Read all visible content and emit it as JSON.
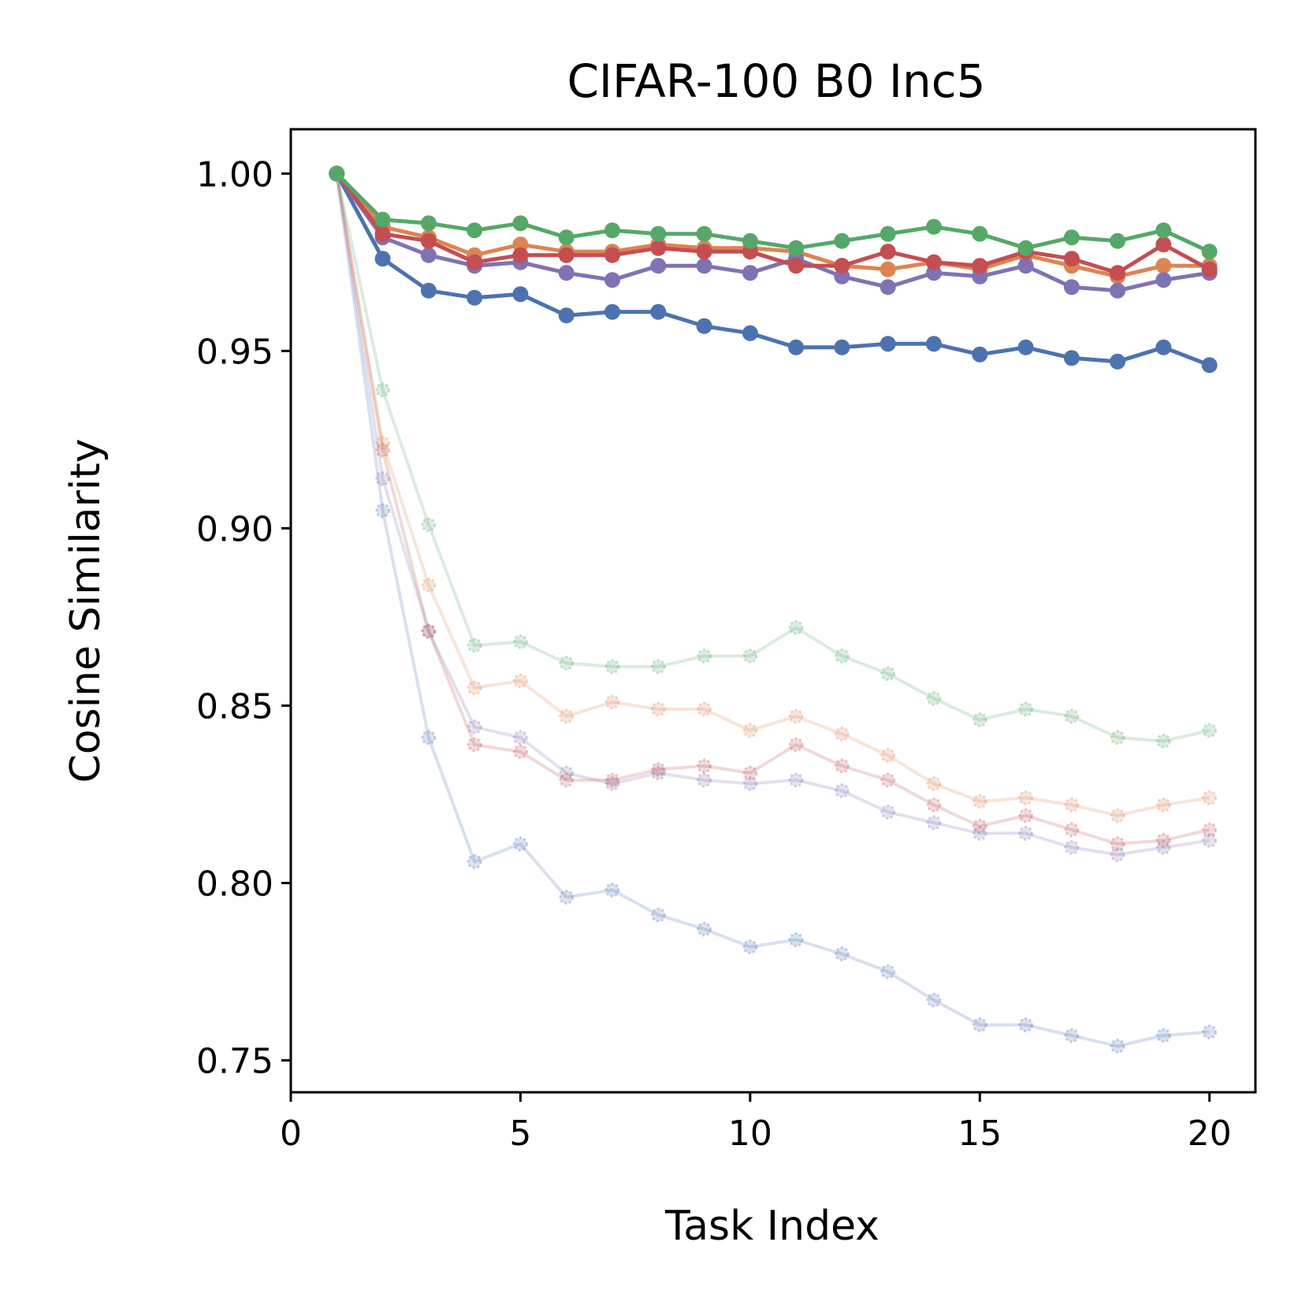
{
  "chart_data": {
    "type": "line",
    "title": "CIFAR-100 B0 Inc5",
    "xlabel": "Task Index",
    "ylabel": "Cosine Similarity",
    "xlim": [
      0,
      21
    ],
    "ylim": [
      0.741,
      1.0125
    ],
    "xticks": [
      0,
      5,
      10,
      15,
      20
    ],
    "xtick_labels": [
      "0",
      "5",
      "10",
      "15",
      "20"
    ],
    "yticks": [
      0.75,
      0.8,
      0.85,
      0.9,
      0.95,
      1.0
    ],
    "ytick_labels": [
      "0.75",
      "0.80",
      "0.85",
      "0.90",
      "0.95",
      "1.00"
    ],
    "grid": false,
    "x": [
      1,
      2,
      3,
      4,
      5,
      6,
      7,
      8,
      9,
      10,
      11,
      12,
      13,
      14,
      15,
      16,
      17,
      18,
      19,
      20
    ],
    "series": [
      {
        "name": "blue-faded",
        "color": "#4c72b0",
        "faded": true,
        "values": [
          1.0,
          0.905,
          0.841,
          0.806,
          0.811,
          0.796,
          0.798,
          0.791,
          0.787,
          0.782,
          0.784,
          0.78,
          0.775,
          0.767,
          0.76,
          0.76,
          0.757,
          0.754,
          0.757,
          0.758
        ]
      },
      {
        "name": "purple-faded",
        "color": "#8172b3",
        "faded": true,
        "values": [
          1.0,
          0.914,
          0.871,
          0.844,
          0.841,
          0.831,
          0.828,
          0.831,
          0.829,
          0.828,
          0.829,
          0.826,
          0.82,
          0.817,
          0.814,
          0.814,
          0.81,
          0.808,
          0.81,
          0.812
        ]
      },
      {
        "name": "red-faded",
        "color": "#c44e52",
        "faded": true,
        "values": [
          1.0,
          0.922,
          0.871,
          0.839,
          0.837,
          0.829,
          0.829,
          0.832,
          0.833,
          0.831,
          0.839,
          0.833,
          0.829,
          0.822,
          0.816,
          0.819,
          0.815,
          0.811,
          0.812,
          0.815
        ]
      },
      {
        "name": "orange-faded",
        "color": "#dd8452",
        "faded": true,
        "values": [
          1.0,
          0.924,
          0.884,
          0.855,
          0.857,
          0.847,
          0.851,
          0.849,
          0.849,
          0.843,
          0.847,
          0.842,
          0.836,
          0.828,
          0.823,
          0.824,
          0.822,
          0.819,
          0.822,
          0.824
        ]
      },
      {
        "name": "green-faded",
        "color": "#55a868",
        "faded": true,
        "values": [
          1.0,
          0.939,
          0.901,
          0.867,
          0.868,
          0.862,
          0.861,
          0.861,
          0.864,
          0.864,
          0.872,
          0.864,
          0.859,
          0.852,
          0.846,
          0.849,
          0.847,
          0.841,
          0.84,
          0.843
        ]
      },
      {
        "name": "blue",
        "color": "#4c72b0",
        "faded": false,
        "values": [
          1.0,
          0.976,
          0.967,
          0.965,
          0.966,
          0.96,
          0.961,
          0.961,
          0.957,
          0.955,
          0.951,
          0.951,
          0.952,
          0.952,
          0.949,
          0.951,
          0.948,
          0.947,
          0.951,
          0.946
        ]
      },
      {
        "name": "orange",
        "color": "#dd8452",
        "faded": false,
        "values": [
          1.0,
          0.985,
          0.982,
          0.977,
          0.98,
          0.978,
          0.978,
          0.98,
          0.979,
          0.979,
          0.978,
          0.974,
          0.973,
          0.975,
          0.973,
          0.977,
          0.974,
          0.971,
          0.974,
          0.974
        ]
      },
      {
        "name": "purple",
        "color": "#8172b3",
        "faded": false,
        "values": [
          1.0,
          0.982,
          0.977,
          0.974,
          0.975,
          0.972,
          0.97,
          0.974,
          0.974,
          0.972,
          0.976,
          0.971,
          0.968,
          0.972,
          0.971,
          0.974,
          0.968,
          0.967,
          0.97,
          0.972
        ]
      },
      {
        "name": "red",
        "color": "#c44e52",
        "faded": false,
        "values": [
          1.0,
          0.983,
          0.981,
          0.975,
          0.977,
          0.977,
          0.977,
          0.979,
          0.978,
          0.978,
          0.974,
          0.974,
          0.978,
          0.975,
          0.974,
          0.978,
          0.976,
          0.972,
          0.98,
          0.973
        ]
      },
      {
        "name": "green",
        "color": "#55a868",
        "faded": false,
        "values": [
          1.0,
          0.987,
          0.986,
          0.984,
          0.986,
          0.982,
          0.984,
          0.983,
          0.983,
          0.981,
          0.979,
          0.981,
          0.983,
          0.985,
          0.983,
          0.979,
          0.982,
          0.981,
          0.984,
          0.978
        ]
      }
    ]
  }
}
